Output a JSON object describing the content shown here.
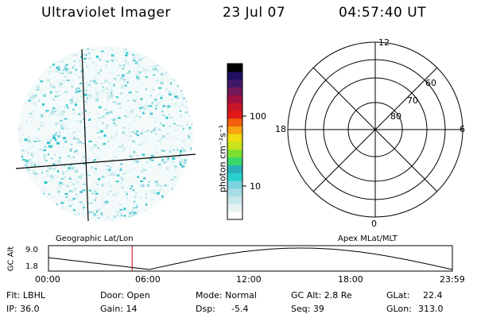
{
  "header": {
    "instrument": "Ultraviolet Imager",
    "date": "23 Jul 07",
    "time": "04:57:40 UT"
  },
  "colorbar": {
    "unit_label": "photon cm⁻²s⁻¹",
    "tick_100": "100",
    "tick_10": "10",
    "colors": [
      "#ffffff",
      "#e8f4f4",
      "#c8e8ec",
      "#a8dce6",
      "#7ad4de",
      "#2ad0cc",
      "#2ab0b8",
      "#3ad86a",
      "#7ce030",
      "#c8e41c",
      "#f0dc10",
      "#f8a410",
      "#f06010",
      "#e01818",
      "#c8142a",
      "#a01040",
      "#701858",
      "#401868",
      "#201060",
      "#000000"
    ]
  },
  "polar_plot": {
    "label_top": "12",
    "label_bottom": "0",
    "label_left": "18",
    "label_right": "6",
    "ring_labels": [
      "60",
      "70",
      "80"
    ]
  },
  "altitude_plot": {
    "y_label": "GC Alt",
    "y_ticks": [
      "9.0",
      "1.8"
    ],
    "left_caption": "Geographic Lat/Lon",
    "right_caption": "Apex MLat/MLT",
    "x_ticks": [
      "00:00",
      "06:00",
      "12:00",
      "18:00",
      "23:59"
    ],
    "current_time_fraction": 0.207,
    "marker_color": "#c00000"
  },
  "status": {
    "flt": "Flt: LBHL",
    "ip": "IP: 36.0",
    "door": "Door: Open",
    "gain": "Gain: 14",
    "mode": "Mode: Normal",
    "dsp_label": "Dsp:",
    "dsp_value": "-5.4",
    "gc_alt": "GC Alt: 2.8 Re",
    "seq": "Seq: 39",
    "glat_label": "GLat:",
    "glat_value": "22.4",
    "glon_label": "GLon:",
    "glon_value": "313.0"
  }
}
